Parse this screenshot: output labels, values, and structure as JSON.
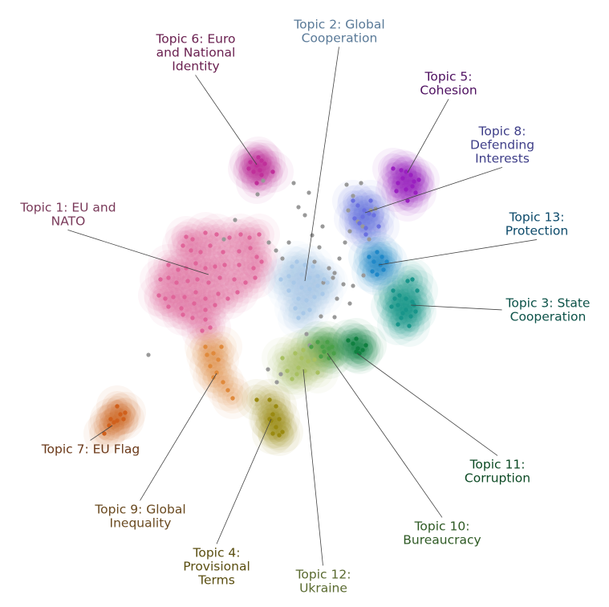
{
  "chart_data": {
    "type": "scatter",
    "title": "",
    "xlabel": "",
    "ylabel": "",
    "grid": false,
    "legend": "none",
    "outlier_color": "#999999",
    "outliers": [
      [
        366,
        228
      ],
      [
        385,
        240
      ],
      [
        372,
        258
      ],
      [
        380,
        268
      ],
      [
        389,
        293
      ],
      [
        398,
        308
      ],
      [
        360,
        302
      ],
      [
        352,
        322
      ],
      [
        344,
        312
      ],
      [
        410,
        334
      ],
      [
        403,
        352
      ],
      [
        415,
        346
      ],
      [
        420,
        372
      ],
      [
        436,
        378
      ],
      [
        440,
        356
      ],
      [
        453,
        343
      ],
      [
        428,
        354
      ],
      [
        432,
        230
      ],
      [
        440,
        244
      ],
      [
        434,
        262
      ],
      [
        450,
        228
      ],
      [
        446,
        276
      ],
      [
        436,
        288
      ],
      [
        430,
        302
      ],
      [
        452,
        282
      ],
      [
        468,
        260
      ],
      [
        460,
        298
      ],
      [
        423,
        322
      ],
      [
        382,
        416
      ],
      [
        386,
        430
      ],
      [
        350,
        466
      ],
      [
        334,
        460
      ],
      [
        345,
        476
      ],
      [
        417,
        395
      ],
      [
        400,
        394
      ],
      [
        293,
        274
      ],
      [
        279,
        298
      ],
      [
        185,
        442
      ],
      [
        328,
        225
      ],
      [
        321,
        242
      ],
      [
        402,
        282
      ],
      [
        392,
        326
      ],
      [
        417,
        340
      ],
      [
        335,
        302
      ],
      [
        462,
        262
      ]
    ],
    "topics": [
      {
        "id": 1,
        "label": "Topic 1: EU and\nNATO",
        "color": "#e0659a",
        "label_color": "#7a3a5a",
        "points": [
          [
            232,
            295
          ],
          [
            240,
            298
          ],
          [
            228,
            306
          ],
          [
            256,
            290
          ],
          [
            270,
            292
          ],
          [
            286,
            296
          ],
          [
            300,
            292
          ],
          [
            311,
            296
          ],
          [
            323,
            292
          ],
          [
            238,
            312
          ],
          [
            250,
            314
          ],
          [
            262,
            306
          ],
          [
            278,
            314
          ],
          [
            298,
            313
          ],
          [
            312,
            309
          ],
          [
            320,
            320
          ],
          [
            210,
            330
          ],
          [
            222,
            336
          ],
          [
            232,
            334
          ],
          [
            244,
            328
          ],
          [
            256,
            334
          ],
          [
            268,
            332
          ],
          [
            280,
            330
          ],
          [
            298,
            330
          ],
          [
            316,
            334
          ],
          [
            326,
            326
          ],
          [
            200,
            348
          ],
          [
            210,
            346
          ],
          [
            220,
            352
          ],
          [
            234,
            350
          ],
          [
            246,
            348
          ],
          [
            260,
            352
          ],
          [
            274,
            346
          ],
          [
            292,
            348
          ],
          [
            306,
            352
          ],
          [
            318,
            346
          ],
          [
            198,
            368
          ],
          [
            206,
            372
          ],
          [
            216,
            370
          ],
          [
            230,
            370
          ],
          [
            244,
            364
          ],
          [
            256,
            372
          ],
          [
            272,
            366
          ],
          [
            284,
            372
          ],
          [
            296,
            364
          ],
          [
            210,
            382
          ],
          [
            226,
            384
          ],
          [
            242,
            378
          ],
          [
            256,
            386
          ],
          [
            268,
            380
          ],
          [
            240,
            396
          ],
          [
            256,
            398
          ],
          [
            228,
            392
          ],
          [
            262,
            408
          ],
          [
            252,
            412
          ]
        ],
        "center": [
          260,
          342
        ],
        "label_x": 85,
        "label_y": 258,
        "anchor": "middle"
      },
      {
        "id": 2,
        "label": "Topic 2: Global\nCooperation",
        "color": "#a8c8e8",
        "label_color": "#5a7a98",
        "points": [
          [
            370,
            326
          ],
          [
            380,
            330
          ],
          [
            390,
            332
          ],
          [
            376,
            342
          ],
          [
            386,
            346
          ],
          [
            396,
            344
          ],
          [
            366,
            352
          ],
          [
            376,
            358
          ],
          [
            386,
            360
          ],
          [
            396,
            356
          ],
          [
            404,
            348
          ],
          [
            360,
            362
          ],
          [
            372,
            372
          ],
          [
            382,
            374
          ],
          [
            392,
            370
          ],
          [
            368,
            384
          ],
          [
            378,
            390
          ],
          [
            386,
            386
          ],
          [
            372,
            396
          ],
          [
            360,
            344
          ],
          [
            350,
            348
          ],
          [
            402,
            366
          ],
          [
            408,
            352
          ],
          [
            364,
            332
          ]
        ],
        "center": [
          380,
          350
        ],
        "label_x": 423,
        "label_y": 30,
        "anchor": "middle"
      },
      {
        "id": 3,
        "label": "Topic 3: State\nCooperation",
        "color": "#18958a",
        "label_color": "#0c5248",
        "points": [
          [
            490,
            362
          ],
          [
            498,
            368
          ],
          [
            506,
            372
          ],
          [
            514,
            376
          ],
          [
            496,
            380
          ],
          [
            506,
            386
          ],
          [
            512,
            394
          ],
          [
            500,
            396
          ],
          [
            488,
            382
          ],
          [
            518,
            388
          ],
          [
            508,
            350
          ],
          [
            514,
            348
          ],
          [
            520,
            362
          ],
          [
            510,
            406
          ],
          [
            502,
            390
          ],
          [
            516,
            380
          ],
          [
            496,
            404
          ],
          [
            492,
            372
          ]
        ],
        "center": [
          512,
          380
        ],
        "label_x": 683,
        "label_y": 377,
        "anchor": "middle"
      },
      {
        "id": 4,
        "label": "Topic 4:\nProvisional\nTerms",
        "color": "#9a8a10",
        "label_color": "#5a4e10",
        "points": [
          [
            320,
            498
          ],
          [
            336,
            498
          ],
          [
            344,
            506
          ],
          [
            340,
            516
          ],
          [
            348,
            522
          ],
          [
            338,
            524
          ],
          [
            344,
            532
          ],
          [
            352,
            538
          ],
          [
            340,
            540
          ],
          [
            348,
            542
          ],
          [
            336,
            522
          ]
        ],
        "center": [
          338,
          522
        ],
        "label_x": 270,
        "label_y": 688,
        "anchor": "middle"
      },
      {
        "id": 5,
        "label": "Topic 5:\nCohesion",
        "color": "#9a20c0",
        "label_color": "#4e1060",
        "points": [
          [
            490,
            210
          ],
          [
            500,
            212
          ],
          [
            506,
            214
          ],
          [
            512,
            218
          ],
          [
            502,
            222
          ],
          [
            516,
            226
          ],
          [
            522,
            224
          ],
          [
            496,
            228
          ],
          [
            506,
            236
          ],
          [
            514,
            232
          ],
          [
            518,
            240
          ],
          [
            494,
            238
          ],
          [
            508,
            250
          ]
        ],
        "center": [
          508,
          215
        ],
        "label_x": 559,
        "label_y": 95,
        "anchor": "middle"
      },
      {
        "id": 6,
        "label": "Topic 6: Euro\nand National\nIdentity",
        "color": "#c0309a",
        "label_color": "#6a2050",
        "points": [
          [
            312,
            202
          ],
          [
            320,
            206
          ],
          [
            326,
            200
          ],
          [
            316,
            214
          ],
          [
            324,
            212
          ],
          [
            310,
            210
          ],
          [
            340,
            214
          ],
          [
            326,
            218
          ],
          [
            330,
            204
          ],
          [
            322,
            196
          ],
          [
            320,
            228
          ]
        ],
        "center": [
          320,
          205
        ],
        "label_x": 244,
        "label_y": 48,
        "anchor": "middle"
      },
      {
        "id": 7,
        "label": "Topic 7: EU Flag",
        "color": "#d0601c",
        "label_color": "#6a3818",
        "points": [
          [
            146,
            506
          ],
          [
            150,
            516
          ],
          [
            138,
            522
          ],
          [
            154,
            522
          ],
          [
            136,
            530
          ],
          [
            142,
            526
          ],
          [
            156,
            514
          ],
          [
            130,
            540
          ],
          [
            146,
            524
          ]
        ],
        "center": [
          140,
          530
        ],
        "label_x": 113,
        "label_y": 559,
        "anchor": "middle"
      },
      {
        "id": 8,
        "label": "Topic 8:\nDefending\nInterests",
        "color": "#6a70e0",
        "label_color": "#3e3e88",
        "points": [
          [
            446,
            256
          ],
          [
            454,
            262
          ],
          [
            460,
            266
          ],
          [
            452,
            270
          ],
          [
            466,
            268
          ],
          [
            448,
            278
          ],
          [
            456,
            284
          ],
          [
            440,
            250
          ],
          [
            462,
            250
          ],
          [
            472,
            282
          ],
          [
            442,
            272
          ],
          [
            456,
            292
          ]
        ],
        "center": [
          455,
          265
        ],
        "label_x": 626,
        "label_y": 163,
        "anchor": "middle"
      },
      {
        "id": 9,
        "label": "Topic 9: Global\nInequality",
        "color": "#e08a3c",
        "label_color": "#6a4a20",
        "points": [
          [
            258,
            442
          ],
          [
            266,
            440
          ],
          [
            272,
            448
          ],
          [
            262,
            456
          ],
          [
            270,
            464
          ],
          [
            278,
            476
          ],
          [
            284,
            486
          ],
          [
            290,
            496
          ],
          [
            256,
            432
          ],
          [
            276,
            432
          ],
          [
            266,
            470
          ]
        ],
        "center": [
          270,
          465
        ],
        "label_x": 175,
        "label_y": 634,
        "anchor": "middle"
      },
      {
        "id": 10,
        "label": "Topic 10:\nBureaucracy",
        "color": "#4aa048",
        "label_color": "#2e5a24",
        "points": [
          [
            396,
            426
          ],
          [
            402,
            432
          ],
          [
            410,
            434
          ],
          [
            404,
            438
          ],
          [
            414,
            432
          ],
          [
            408,
            426
          ],
          [
            388,
            432
          ],
          [
            410,
            446
          ],
          [
            416,
            440
          ],
          [
            400,
            444
          ]
        ],
        "center": [
          408,
          440
        ],
        "label_x": 551,
        "label_y": 655,
        "anchor": "middle"
      },
      {
        "id": 11,
        "label": "Topic 11:\nCorruption",
        "color": "#108040",
        "label_color": "#0c4a24",
        "points": [
          [
            440,
            428
          ],
          [
            446,
            434
          ],
          [
            452,
            436
          ],
          [
            444,
            438
          ],
          [
            456,
            430
          ],
          [
            448,
            440
          ],
          [
            434,
            424
          ],
          [
            444,
            422
          ]
        ],
        "center": [
          445,
          440
        ],
        "label_x": 620,
        "label_y": 578,
        "anchor": "middle"
      },
      {
        "id": 12,
        "label": "Topic 12:\nUkraine",
        "color": "#a8c060",
        "label_color": "#5a6a30",
        "points": [
          [
            368,
            440
          ],
          [
            376,
            446
          ],
          [
            372,
            458
          ],
          [
            380,
            462
          ],
          [
            370,
            466
          ],
          [
            364,
            472
          ],
          [
            384,
            450
          ],
          [
            392,
            448
          ],
          [
            358,
            462
          ],
          [
            352,
            446
          ],
          [
            378,
            436
          ],
          [
            396,
            464
          ]
        ],
        "center": [
          378,
          460
        ],
        "label_x": 403,
        "label_y": 715,
        "anchor": "middle"
      },
      {
        "id": 13,
        "label": "Topic 13:\nProtection",
        "color": "#2088c8",
        "label_color": "#0c4a6a",
        "points": [
          [
            470,
            314
          ],
          [
            476,
            320
          ],
          [
            466,
            326
          ],
          [
            474,
            330
          ],
          [
            464,
            338
          ],
          [
            470,
            342
          ],
          [
            478,
            336
          ],
          [
            460,
            320
          ],
          [
            482,
            326
          ]
        ],
        "center": [
          472,
          330
        ],
        "label_x": 669,
        "label_y": 270,
        "anchor": "middle"
      }
    ]
  }
}
